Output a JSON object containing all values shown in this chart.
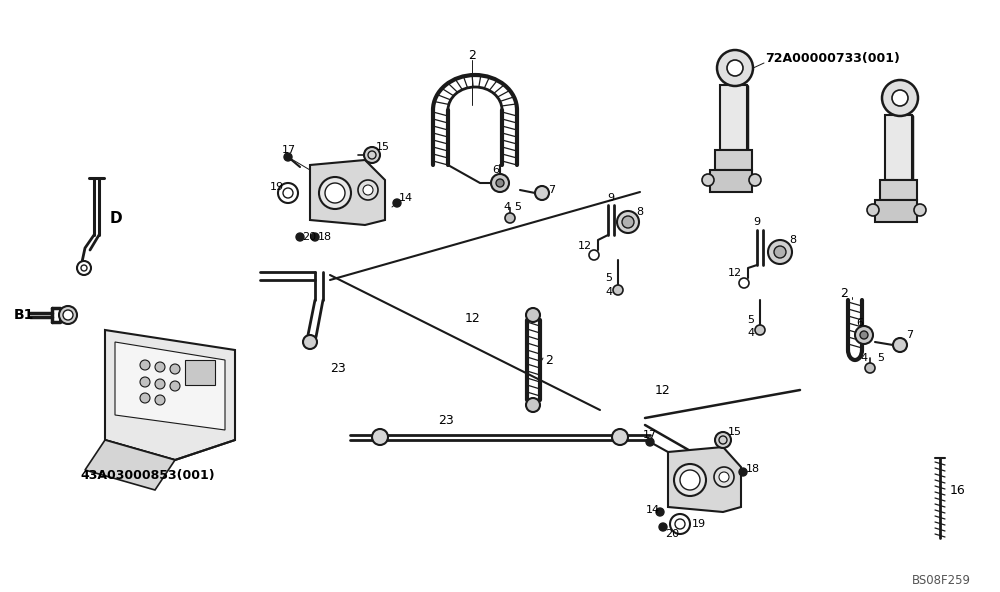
{
  "bg_color": "#ffffff",
  "line_color": "#1a1a1a",
  "dash_color": "#2a2a2a",
  "text_color": "#000000",
  "ref1": "72A00000733(001)",
  "ref2": "43A03000853(001)",
  "watermark": "BS08F259",
  "label_D": "D",
  "label_B1": "B1"
}
